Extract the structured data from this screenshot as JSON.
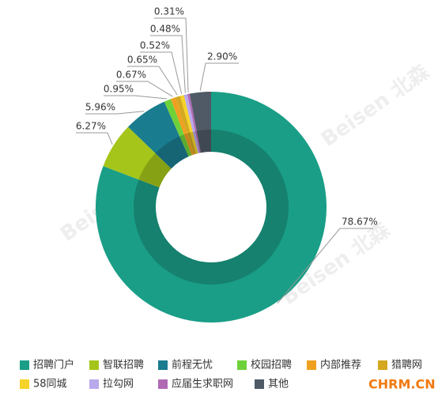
{
  "chart_data": {
    "type": "donut",
    "watermark": "Beisen 北森",
    "credit": "CHRM.CN",
    "categories": [
      "招聘门户",
      "智联招聘",
      "前程无忧",
      "校园招聘",
      "内部推荐",
      "猎聘网",
      "58同城",
      "拉勾网",
      "应届生求职网",
      "其他"
    ],
    "values": [
      78.67,
      6.27,
      5.96,
      0.95,
      0.67,
      0.65,
      0.52,
      0.48,
      0.31,
      2.9
    ],
    "value_labels": [
      "78.67%",
      "6.27%",
      "5.96%",
      "0.95%",
      "0.67%",
      "0.65%",
      "0.52%",
      "0.48%",
      "0.31%",
      "2.90%"
    ],
    "colors": [
      "#1a9e87",
      "#a5c51a",
      "#1a7c8f",
      "#6fd13a",
      "#f0a020",
      "#d4a820",
      "#f5d328",
      "#b9a8ec",
      "#b06ab3",
      "#4f5a66"
    ]
  }
}
